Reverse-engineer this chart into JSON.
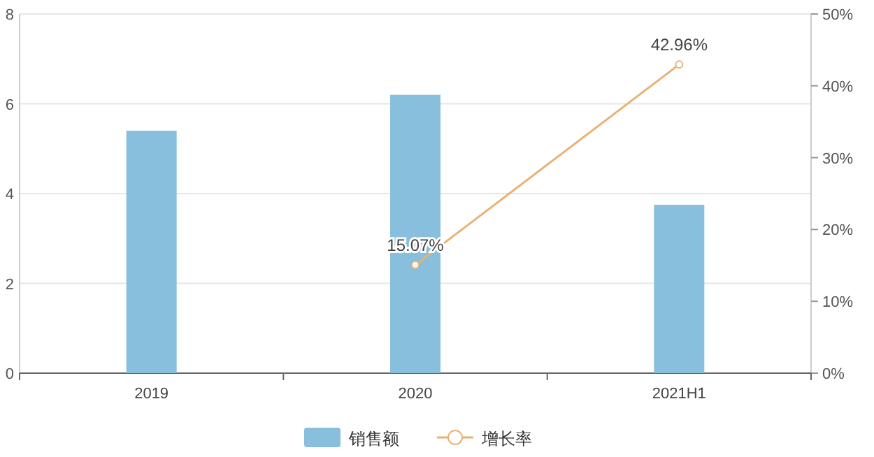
{
  "chart_data": {
    "type": "bar",
    "categories": [
      "2019",
      "2020",
      "2021H1"
    ],
    "series": [
      {
        "name": "销售额",
        "color": "#88bfdc",
        "values": [
          5.4,
          6.2,
          3.75
        ]
      },
      {
        "name": "增长率",
        "type": "line",
        "axis": "y2",
        "color": "#e8b274",
        "marker": "circle",
        "values": [
          null,
          15.07,
          42.96
        ],
        "value_labels": [
          null,
          "15.07%",
          "42.96%"
        ]
      }
    ],
    "ylim": [
      0,
      8
    ],
    "yticks": [
      0,
      2,
      4,
      6,
      8
    ],
    "y2lim": [
      0,
      50
    ],
    "y2ticks": [
      {
        "value": 0,
        "label": "0%"
      },
      {
        "value": 10,
        "label": "10%"
      },
      {
        "value": 20,
        "label": "20%"
      },
      {
        "value": 30,
        "label": "30%"
      },
      {
        "value": 40,
        "label": "40%"
      },
      {
        "value": 50,
        "label": "50%"
      }
    ],
    "grid": "y",
    "legend": "bottom"
  }
}
